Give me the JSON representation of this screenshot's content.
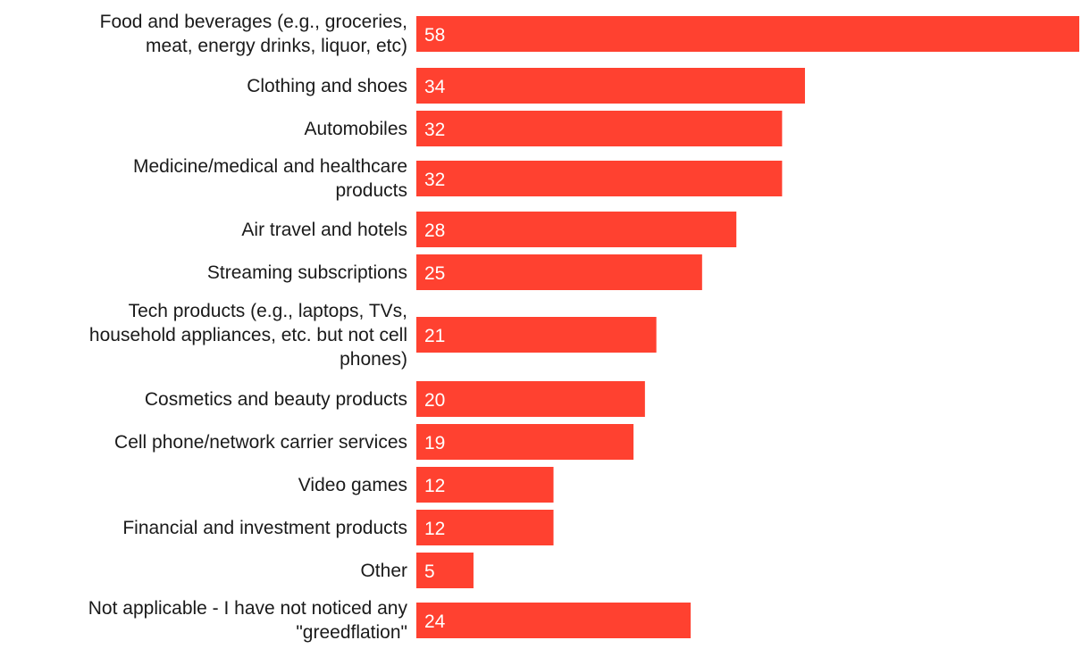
{
  "chart_data": {
    "type": "bar",
    "orientation": "horizontal",
    "categories": [
      "Food and beverages (e.g., groceries, meat, energy drinks, liquor, etc)",
      "Clothing and shoes",
      "Automobiles",
      "Medicine/medical and healthcare products",
      "Air travel and hotels",
      "Streaming subscriptions",
      "Tech products (e.g., laptops, TVs, household appliances, etc. but not cell phones)",
      "Cosmetics and beauty products",
      "Cell phone/network carrier services",
      "Video games",
      "Financial and investment products",
      "Other",
      "Not applicable - I have not noticed any \"greedflation\""
    ],
    "values": [
      58,
      34,
      32,
      32,
      28,
      25,
      21,
      20,
      19,
      12,
      12,
      5,
      24
    ],
    "xlim": [
      0,
      58
    ],
    "grid": false,
    "legend": "none",
    "bar_color": "#ff4130",
    "value_label_color": "#ffffff",
    "title": "",
    "xlabel": "",
    "ylabel": ""
  }
}
